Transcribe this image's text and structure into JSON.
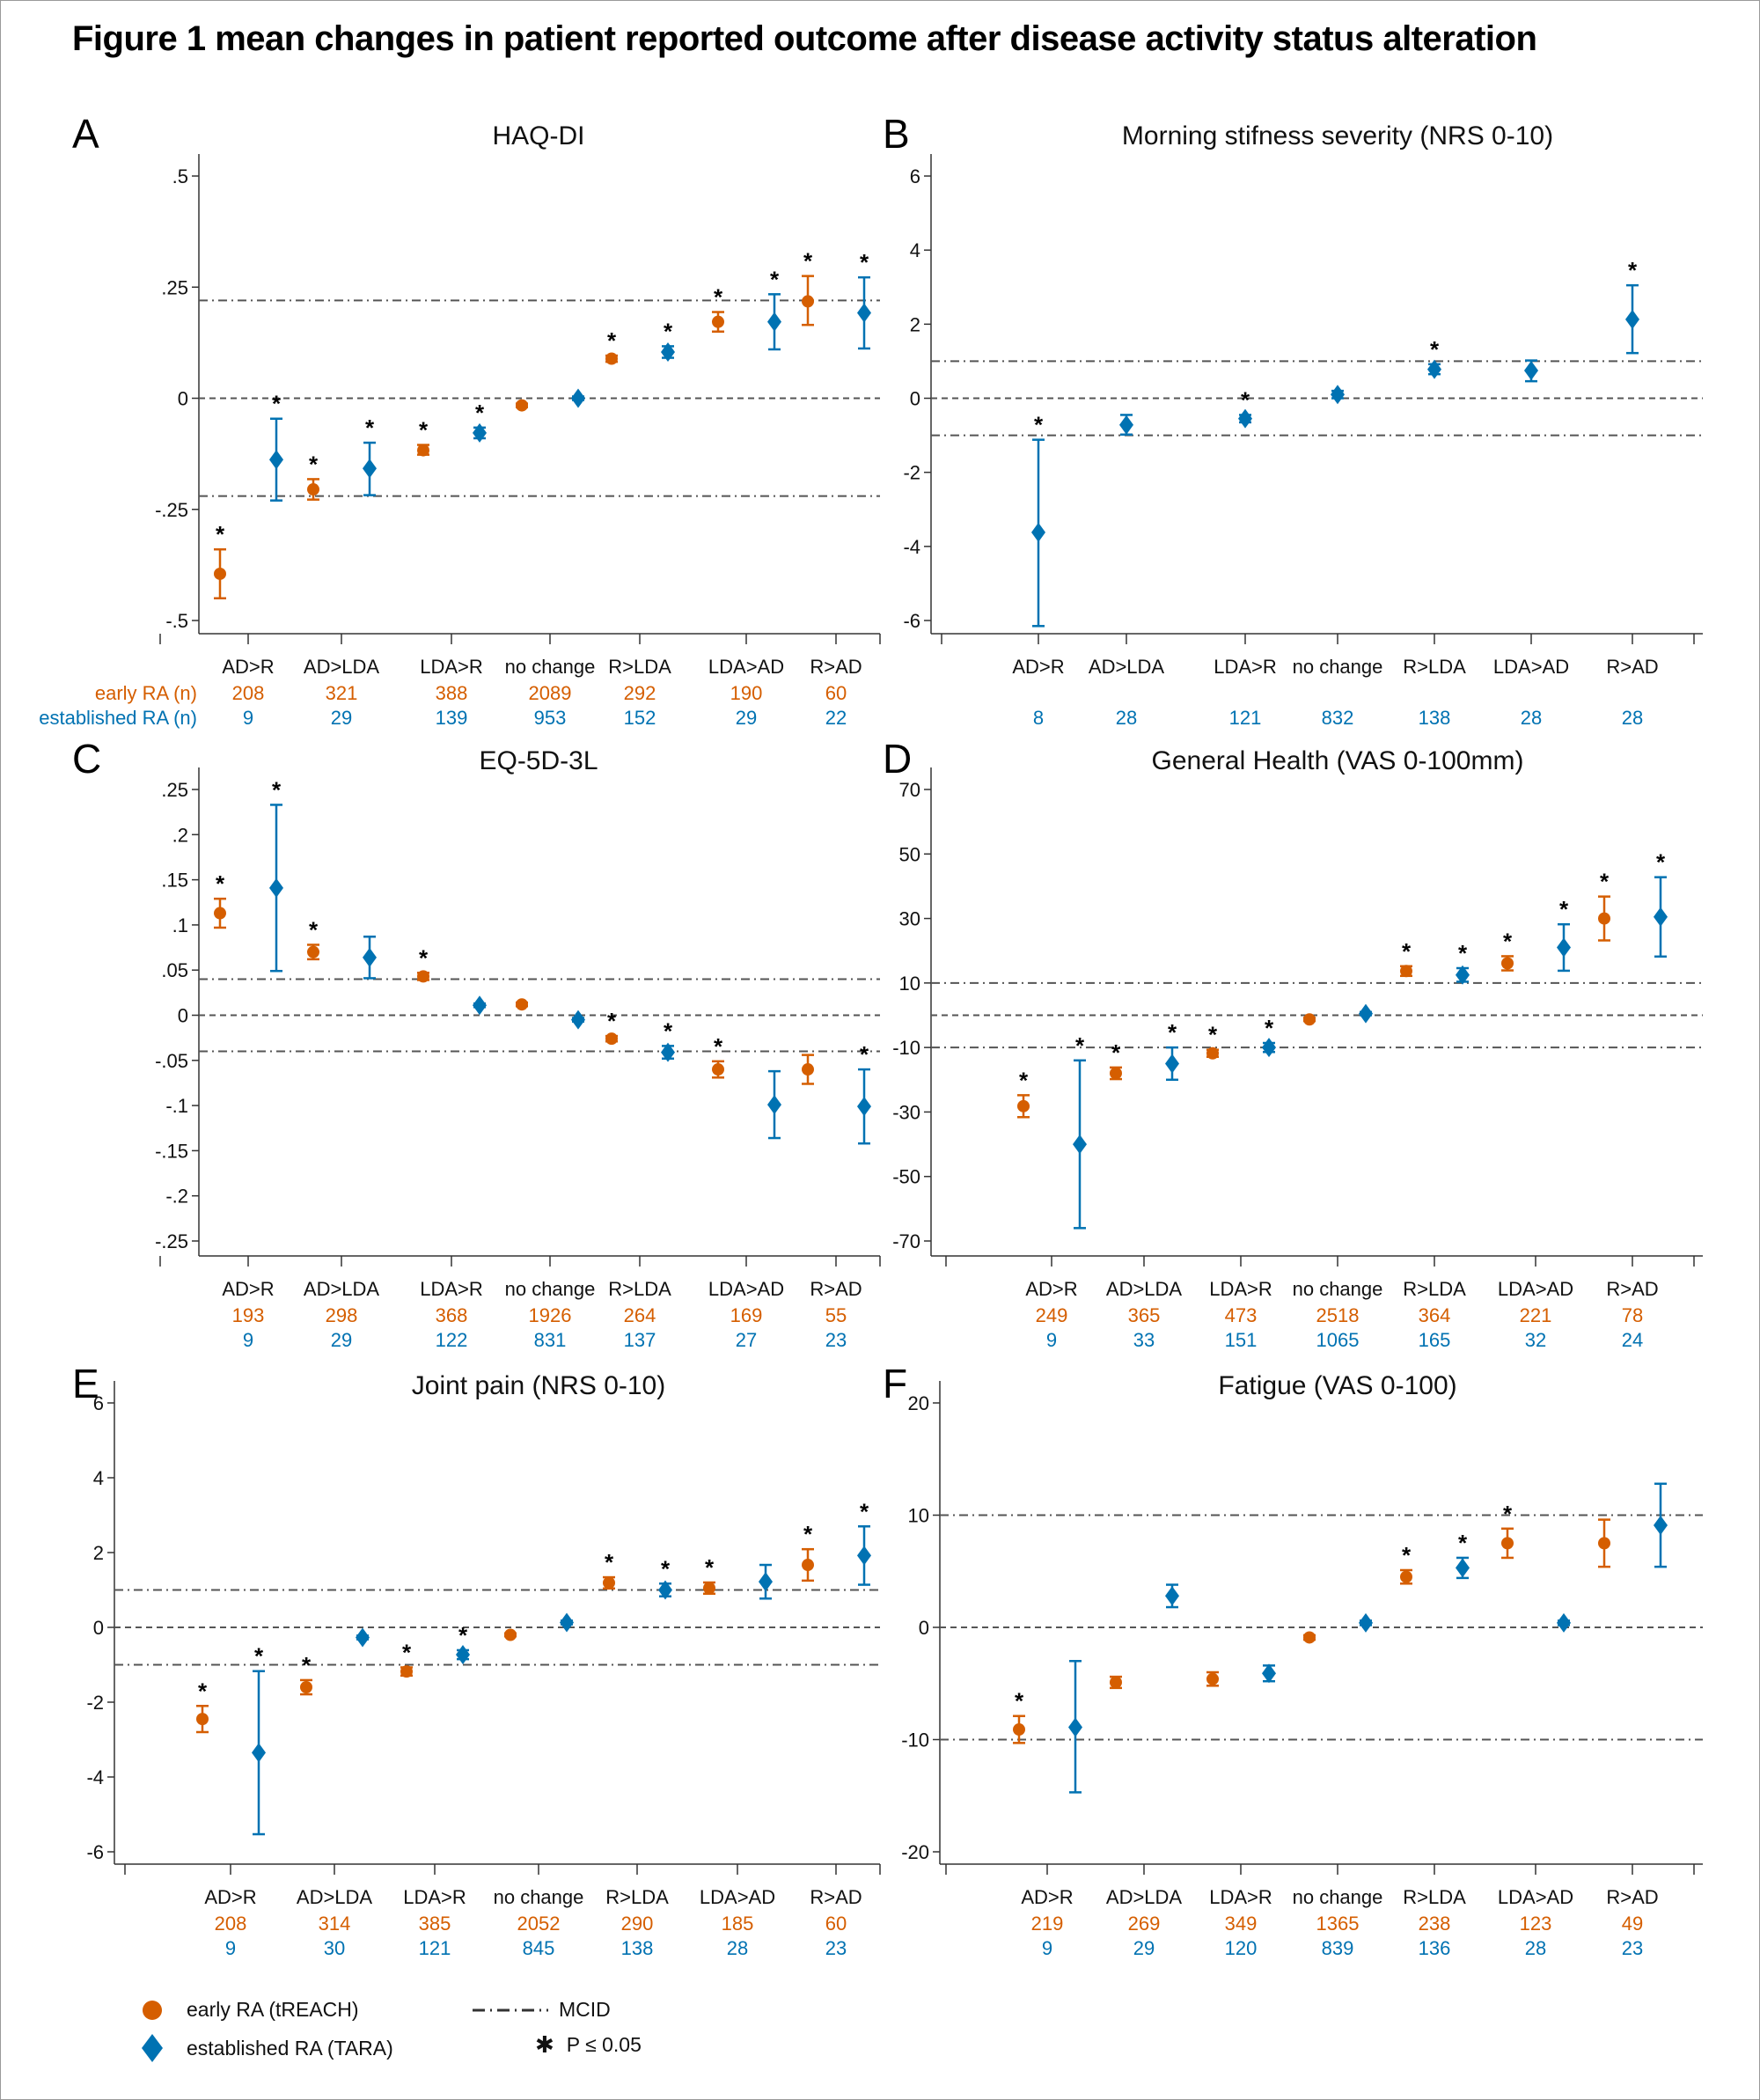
{
  "title": "Figure 1 mean changes in patient reported outcome after disease activity status alteration",
  "colors": {
    "early": "#D55E00",
    "established": "#0072B2",
    "axis": "#333333",
    "refline": "#555555"
  },
  "legend": {
    "early_label": "early RA (tREACH)",
    "established_label": "established RA (TARA)",
    "mcid_label": "MCID",
    "significance_symbol": "✱",
    "significance_label": "P ≤ 0.05"
  },
  "row_labels": {
    "early": "early RA (n)",
    "established": "established RA (n)"
  },
  "chart_data": [
    {
      "panel": "A",
      "type": "scatter",
      "title": "HAQ-DI",
      "categories": [
        "AD>R",
        "AD>LDA",
        "LDA>R",
        "no change",
        "R>LDA",
        "LDA>AD",
        "R>AD"
      ],
      "ylim": [
        -0.5,
        0.5
      ],
      "yticks": [
        0.5,
        0.25,
        0,
        -0.25,
        -0.5
      ],
      "ytick_labels": [
        ".5",
        ".25",
        "0",
        "-.25",
        "-.5"
      ],
      "mcid": 0.22,
      "show_row_labels": true,
      "series": [
        {
          "name": "early RA (tREACH)",
          "key": "early",
          "mean": [
            -0.395,
            -0.205,
            -0.117,
            -0.016,
            0.089,
            0.172,
            0.218
          ],
          "lo": [
            -0.45,
            -0.228,
            -0.127,
            -0.02,
            0.082,
            0.15,
            0.165
          ],
          "hi": [
            -0.34,
            -0.182,
            -0.105,
            -0.012,
            0.096,
            0.194,
            0.275
          ],
          "sig": [
            true,
            true,
            true,
            false,
            true,
            true,
            true
          ],
          "n": [
            "208",
            "321",
            "388",
            "2089",
            "292",
            "190",
            "60"
          ]
        },
        {
          "name": "established RA (TARA)",
          "key": "established",
          "mean": [
            -0.138,
            -0.158,
            -0.078,
            0.0,
            0.104,
            0.172,
            0.192
          ],
          "lo": [
            -0.23,
            -0.218,
            -0.09,
            -0.004,
            0.091,
            0.11,
            0.112
          ],
          "hi": [
            -0.046,
            -0.1,
            -0.066,
            0.004,
            0.117,
            0.234,
            0.272
          ],
          "sig": [
            true,
            true,
            true,
            false,
            true,
            true,
            true
          ],
          "n": [
            "9",
            "29",
            "139",
            "953",
            "152",
            "29",
            "22"
          ]
        }
      ]
    },
    {
      "panel": "B",
      "type": "scatter",
      "title": "Morning stifness severity (NRS 0-10)",
      "categories": [
        "AD>R",
        "AD>LDA",
        "LDA>R",
        "no change",
        "R>LDA",
        "LDA>AD",
        "R>AD"
      ],
      "ylim": [
        -6,
        6
      ],
      "yticks": [
        6,
        4,
        2,
        0,
        -2,
        -4,
        -6
      ],
      "ytick_labels": [
        "6",
        "4",
        "2",
        "0",
        "-2",
        "-4",
        "-6"
      ],
      "mcid": 1,
      "show_row_labels": false,
      "series": [
        {
          "name": "established RA (TARA)",
          "key": "established",
          "mean": [
            -3.62,
            -0.72,
            -0.55,
            0.1,
            0.78,
            0.75,
            2.13
          ],
          "lo": [
            -6.15,
            -0.98,
            -0.65,
            0.0,
            0.65,
            0.46,
            1.22
          ],
          "hi": [
            -1.12,
            -0.45,
            -0.45,
            0.2,
            0.92,
            1.02,
            3.05
          ],
          "sig": [
            true,
            false,
            true,
            false,
            true,
            false,
            true
          ],
          "n": [
            "8",
            "28",
            "121",
            "832",
            "138",
            "28",
            "28"
          ]
        }
      ]
    },
    {
      "panel": "C",
      "type": "scatter",
      "title": "EQ-5D-3L",
      "categories": [
        "AD>R",
        "AD>LDA",
        "LDA>R",
        "no change",
        "R>LDA",
        "LDA>AD",
        "R>AD"
      ],
      "ylim": [
        -0.25,
        0.25
      ],
      "yticks": [
        0.25,
        0.2,
        0.15,
        0.1,
        0.05,
        0,
        -0.05,
        -0.1,
        -0.15,
        -0.2,
        -0.25
      ],
      "ytick_labels": [
        ".25",
        ".2",
        ".15",
        ".1",
        ".05",
        "0",
        "-.05",
        "-.1",
        "-.15",
        "-.2",
        "-.25"
      ],
      "mcid": 0.04,
      "show_row_labels": false,
      "series": [
        {
          "name": "early RA (tREACH)",
          "key": "early",
          "mean": [
            0.113,
            0.07,
            0.043,
            0.012,
            -0.026,
            -0.06,
            -0.06
          ],
          "lo": [
            0.097,
            0.062,
            0.039,
            0.01,
            -0.029,
            -0.069,
            -0.076
          ],
          "hi": [
            0.129,
            0.078,
            0.047,
            0.014,
            -0.023,
            -0.051,
            -0.044
          ],
          "sig": [
            true,
            true,
            true,
            false,
            true,
            true,
            false
          ],
          "n": [
            "193",
            "298",
            "368",
            "1926",
            "264",
            "169",
            "55"
          ]
        },
        {
          "name": "established RA (TARA)",
          "key": "established",
          "mean": [
            0.141,
            0.064,
            0.011,
            -0.005,
            -0.041,
            -0.099,
            -0.101
          ],
          "lo": [
            0.049,
            0.041,
            0.009,
            -0.007,
            -0.048,
            -0.136,
            -0.142
          ],
          "hi": [
            0.233,
            0.087,
            0.013,
            -0.003,
            -0.034,
            -0.062,
            -0.06
          ],
          "sig": [
            true,
            false,
            false,
            false,
            true,
            false,
            true
          ],
          "n": [
            "9",
            "29",
            "122",
            "831",
            "137",
            "27",
            "23"
          ]
        }
      ]
    },
    {
      "panel": "D",
      "type": "scatter",
      "title": "General Health (VAS 0-100mm)",
      "categories": [
        "AD>R",
        "AD>LDA",
        "LDA>R",
        "no change",
        "R>LDA",
        "LDA>AD",
        "R>AD"
      ],
      "ylim": [
        -70,
        70
      ],
      "yticks": [
        70,
        50,
        30,
        10,
        -10,
        -30,
        -50,
        -70
      ],
      "ytick_labels": [
        "70",
        "50",
        "30",
        "10",
        "-10",
        "-30",
        "-50",
        "-70"
      ],
      "mcid": 10,
      "show_row_labels": false,
      "series": [
        {
          "name": "early RA (tREACH)",
          "key": "early",
          "mean": [
            -28.2,
            -18.0,
            -11.8,
            -1.3,
            13.7,
            16.1,
            30.0
          ],
          "lo": [
            -31.6,
            -19.8,
            -12.9,
            -1.8,
            12.2,
            13.9,
            23.2
          ],
          "hi": [
            -24.8,
            -16.2,
            -10.7,
            -0.8,
            15.2,
            18.3,
            36.8
          ],
          "sig": [
            true,
            true,
            true,
            false,
            true,
            true,
            true
          ],
          "n": [
            "249",
            "365",
            "473",
            "2518",
            "364",
            "221",
            "78"
          ]
        },
        {
          "name": "established RA (TARA)",
          "key": "established",
          "mean": [
            -40.0,
            -15.0,
            -10.0,
            0.5,
            12.5,
            21.0,
            30.5
          ],
          "lo": [
            -66.0,
            -20.0,
            -11.4,
            0.0,
            10.4,
            13.8,
            18.2
          ],
          "hi": [
            -14.0,
            -10.0,
            -8.6,
            1.0,
            14.6,
            28.2,
            42.8
          ],
          "sig": [
            true,
            true,
            true,
            false,
            true,
            true,
            true
          ],
          "n": [
            "9",
            "33",
            "151",
            "1065",
            "165",
            "32",
            "24"
          ]
        }
      ]
    },
    {
      "panel": "E",
      "type": "scatter",
      "title": "Joint pain (NRS 0-10)",
      "categories": [
        "AD>R",
        "AD>LDA",
        "LDA>R",
        "no change",
        "R>LDA",
        "LDA>AD",
        "R>AD"
      ],
      "ylim": [
        -6,
        6
      ],
      "yticks": [
        6,
        4,
        2,
        0,
        -2,
        -4,
        -6
      ],
      "ytick_labels": [
        "6",
        "4",
        "2",
        "0",
        "-2",
        "-4",
        "-6"
      ],
      "mcid": 1,
      "show_row_labels": false,
      "series": [
        {
          "name": "early RA (tREACH)",
          "key": "early",
          "mean": [
            -2.45,
            -1.6,
            -1.18,
            -0.2,
            1.19,
            1.05,
            1.67
          ],
          "lo": [
            -2.8,
            -1.79,
            -1.29,
            -0.24,
            1.04,
            0.9,
            1.25
          ],
          "hi": [
            -2.1,
            -1.41,
            -1.07,
            -0.16,
            1.34,
            1.2,
            2.09
          ],
          "sig": [
            true,
            true,
            true,
            false,
            true,
            true,
            true
          ],
          "n": [
            "208",
            "314",
            "385",
            "2052",
            "290",
            "185",
            "60"
          ]
        },
        {
          "name": "established RA (TARA)",
          "key": "established",
          "mean": [
            -3.35,
            -0.27,
            -0.73,
            0.13,
            1.0,
            1.22,
            1.92
          ],
          "lo": [
            -5.53,
            -0.32,
            -0.85,
            0.08,
            0.83,
            0.77,
            1.14
          ],
          "hi": [
            -1.17,
            -0.22,
            -0.61,
            0.18,
            1.17,
            1.67,
            2.7
          ],
          "sig": [
            true,
            false,
            true,
            false,
            true,
            false,
            true
          ],
          "n": [
            "9",
            "30",
            "121",
            "845",
            "138",
            "28",
            "23"
          ]
        }
      ]
    },
    {
      "panel": "F",
      "type": "scatter",
      "title": "Fatigue (VAS 0-100)",
      "categories": [
        "AD>R",
        "AD>LDA",
        "LDA>R",
        "no change",
        "R>LDA",
        "LDA>AD",
        "R>AD"
      ],
      "ylim": [
        -20,
        20
      ],
      "yticks": [
        20,
        10,
        0,
        -10,
        -20
      ],
      "ytick_labels": [
        "20",
        "10",
        "0",
        "-10",
        "-20"
      ],
      "mcid": 10,
      "show_row_labels": false,
      "series": [
        {
          "name": "early RA (tREACH)",
          "key": "early",
          "mean": [
            -9.1,
            -4.9,
            -4.6,
            -0.9,
            4.5,
            7.5,
            7.5
          ],
          "lo": [
            -10.3,
            -5.4,
            -5.2,
            -1.1,
            3.9,
            6.2,
            5.4
          ],
          "hi": [
            -7.9,
            -4.4,
            -4.0,
            -0.7,
            5.1,
            8.8,
            9.6
          ],
          "sig": [
            true,
            false,
            false,
            false,
            true,
            true,
            false
          ],
          "n": [
            "219",
            "269",
            "349",
            "1365",
            "238",
            "123",
            "49"
          ]
        },
        {
          "name": "established RA (TARA)",
          "key": "established",
          "mean": [
            -8.9,
            2.8,
            -4.1,
            0.4,
            5.3,
            0.4,
            9.1
          ],
          "lo": [
            -14.7,
            1.8,
            -4.8,
            0.2,
            4.4,
            0.2,
            5.4
          ],
          "hi": [
            -3.0,
            3.8,
            -3.4,
            0.6,
            6.2,
            0.6,
            12.8
          ],
          "sig": [
            false,
            false,
            false,
            false,
            true,
            false,
            false
          ],
          "n": [
            "9",
            "29",
            "120",
            "839",
            "136",
            "28",
            "23"
          ]
        }
      ]
    }
  ]
}
